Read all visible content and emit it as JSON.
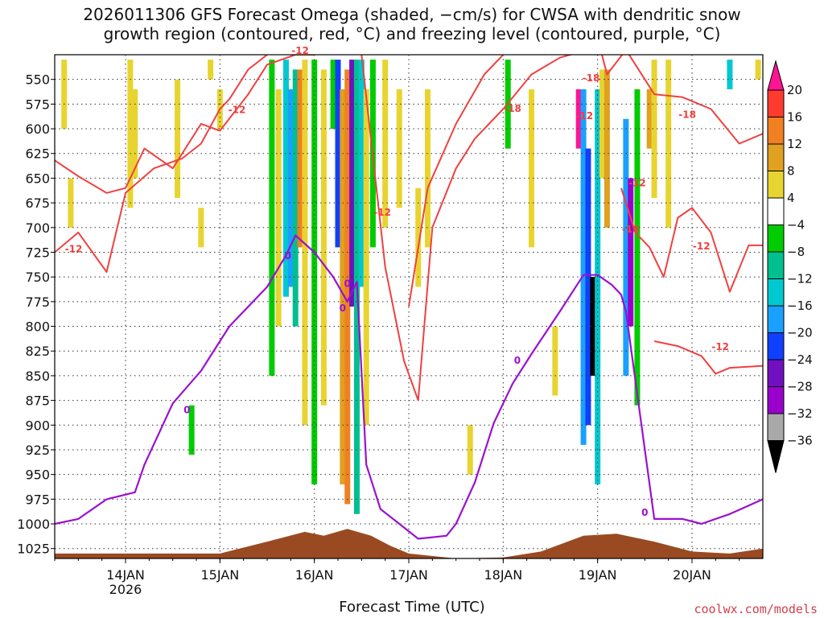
{
  "chart_data": {
    "type": "heatmap",
    "title_line1": "2026011306 GFS Forecast Omega (shaded, −cm/s) for CWSA with dendritic snow",
    "title_line2": "growth region (contoured, red, °C) and freezing level (contoured, purple, °C)",
    "xlabel": "Forecast Time (UTC)",
    "ylabel": "",
    "credit": "coolwx.com/models",
    "x_ticks": [
      "14JAN",
      "15JAN",
      "16JAN",
      "17JAN",
      "18JAN",
      "19JAN",
      "20JAN"
    ],
    "x_year": "2026",
    "x_range_days": [
      13.25,
      20.75
    ],
    "y_ticks": [
      550,
      575,
      600,
      625,
      650,
      675,
      700,
      725,
      750,
      775,
      800,
      825,
      850,
      875,
      900,
      925,
      950,
      975,
      1000,
      1025
    ],
    "y_range_hpa": [
      525,
      1035
    ],
    "colorbar": {
      "labels": [
        "20",
        "16",
        "12",
        "8",
        "4",
        "−4",
        "−8",
        "−12",
        "−16",
        "−20",
        "−24",
        "−28",
        "−32",
        "−36"
      ],
      "colors": [
        "#ff1493",
        "#ff3b30",
        "#f08020",
        "#e0a020",
        "#e8d430",
        "#ffffff",
        "#00cc00",
        "#00c090",
        "#00c8d0",
        "#1aa0ff",
        "#1040ff",
        "#7010c0",
        "#9900cc",
        "#a9a9a9",
        "#000000"
      ]
    },
    "contour_labels_red": [
      "-12",
      "-12",
      "-12",
      "-12",
      "-18",
      "-18",
      "-18",
      "-18",
      "-12",
      "-12",
      "-12",
      "-12"
    ],
    "contour_labels_purple": [
      "0",
      "0",
      "0",
      "0",
      "0",
      "0"
    ],
    "freezing_level_hpa": {
      "x": [
        13.25,
        13.5,
        13.8,
        14.1,
        14.2,
        14.5,
        14.8,
        15.1,
        15.5,
        15.7,
        15.8,
        16.0,
        16.2,
        16.35,
        16.45,
        16.55,
        16.7,
        16.9,
        17.1,
        17.4,
        17.5,
        17.7,
        17.9,
        18.1,
        18.3,
        18.6,
        18.85,
        19.0,
        19.15,
        19.25,
        19.3,
        19.6,
        19.9,
        20.1,
        20.4,
        20.75
      ],
      "y": [
        1000,
        995,
        975,
        968,
        940,
        878,
        845,
        800,
        760,
        728,
        708,
        725,
        750,
        775,
        755,
        940,
        985,
        1000,
        1015,
        1012,
        1000,
        958,
        898,
        858,
        828,
        785,
        748,
        748,
        758,
        768,
        785,
        995,
        995,
        1000,
        990,
        975
      ]
    },
    "dgz_boundaries_hpa": [
      {
        "x": [
          13.25,
          13.5,
          13.8,
          14.0,
          14.2,
          14.5,
          14.8,
          15.0,
          15.3,
          15.5,
          15.8,
          16.0
        ],
        "y": [
          632,
          648,
          665,
          660,
          620,
          640,
          595,
          602,
          565,
          535,
          525,
          525
        ]
      },
      {
        "x": [
          13.25,
          13.5,
          13.8,
          14.0,
          14.3,
          14.6,
          14.8,
          15.0,
          15.1,
          15.3,
          15.5
        ],
        "y": [
          725,
          705,
          745,
          665,
          640,
          630,
          615,
          580,
          570,
          540,
          525
        ]
      },
      {
        "x": [
          16.5,
          16.75,
          16.95,
          17.1,
          17.25,
          17.5,
          17.7,
          18.0,
          18.3,
          18.6,
          18.9,
          19.0
        ],
        "y": [
          525,
          740,
          835,
          875,
          700,
          640,
          610,
          580,
          545,
          528,
          520,
          525
        ]
      },
      {
        "x": [
          17.0,
          17.2,
          17.5,
          17.8,
          18.1,
          18.4,
          18.7,
          18.95,
          19.1,
          19.3,
          19.6,
          19.9,
          20.2,
          20.5,
          20.75
        ],
        "y": [
          780,
          660,
          595,
          545,
          515,
          500,
          495,
          490,
          545,
          520,
          565,
          568,
          580,
          615,
          605
        ]
      },
      {
        "x": [
          19.25,
          19.4,
          19.55,
          19.7,
          19.85,
          20.0,
          20.2,
          20.4,
          20.6,
          20.75
        ],
        "y": [
          660,
          705,
          720,
          750,
          690,
          680,
          705,
          765,
          718,
          718
        ]
      },
      {
        "x": [
          19.6,
          19.85,
          20.1,
          20.25,
          20.4,
          20.75
        ],
        "y": [
          815,
          820,
          830,
          848,
          842,
          840
        ]
      }
    ],
    "omega_cells": [
      {
        "x": 13.35,
        "p0": 530,
        "p1": 600,
        "v": 5
      },
      {
        "x": 13.42,
        "p0": 650,
        "p1": 700,
        "v": 5
      },
      {
        "x": 14.05,
        "p0": 530,
        "p1": 680,
        "v": 5
      },
      {
        "x": 14.1,
        "p0": 560,
        "p1": 650,
        "v": 5
      },
      {
        "x": 14.55,
        "p0": 550,
        "p1": 670,
        "v": 5
      },
      {
        "x": 14.9,
        "p0": 530,
        "p1": 550,
        "v": 5
      },
      {
        "x": 15.0,
        "p0": 560,
        "p1": 600,
        "v": 5
      },
      {
        "x": 14.7,
        "p0": 880,
        "p1": 930,
        "v": -6
      },
      {
        "x": 14.8,
        "p0": 680,
        "p1": 720,
        "v": 5
      },
      {
        "x": 15.55,
        "p0": 530,
        "p1": 850,
        "v": -6
      },
      {
        "x": 15.62,
        "p0": 560,
        "p1": 800,
        "v": 5
      },
      {
        "x": 15.7,
        "p0": 530,
        "p1": 770,
        "v": -13
      },
      {
        "x": 15.75,
        "p0": 560,
        "p1": 760,
        "v": -17
      },
      {
        "x": 15.8,
        "p0": 540,
        "p1": 800,
        "v": -9
      },
      {
        "x": 15.85,
        "p0": 540,
        "p1": 720,
        "v": 13
      },
      {
        "x": 15.9,
        "p0": 530,
        "p1": 900,
        "v": 5
      },
      {
        "x": 16.0,
        "p0": 530,
        "p1": 960,
        "v": -6
      },
      {
        "x": 16.1,
        "p0": 540,
        "p1": 880,
        "v": 5
      },
      {
        "x": 16.2,
        "p0": 530,
        "p1": 600,
        "v": -6
      },
      {
        "x": 16.25,
        "p0": 530,
        "p1": 720,
        "v": -21
      },
      {
        "x": 16.3,
        "p0": 560,
        "p1": 960,
        "v": 9
      },
      {
        "x": 16.35,
        "p0": 540,
        "p1": 980,
        "v": 13
      },
      {
        "x": 16.4,
        "p0": 530,
        "p1": 780,
        "v": -25
      },
      {
        "x": 16.45,
        "p0": 530,
        "p1": 990,
        "v": -9
      },
      {
        "x": 16.5,
        "p0": 530,
        "p1": 760,
        "v": -13
      },
      {
        "x": 16.55,
        "p0": 560,
        "p1": 900,
        "v": 5
      },
      {
        "x": 16.62,
        "p0": 530,
        "p1": 720,
        "v": -6
      },
      {
        "x": 16.75,
        "p0": 530,
        "p1": 700,
        "v": 5
      },
      {
        "x": 16.9,
        "p0": 560,
        "p1": 680,
        "v": 5
      },
      {
        "x": 17.1,
        "p0": 660,
        "p1": 760,
        "v": 5
      },
      {
        "x": 17.2,
        "p0": 560,
        "p1": 720,
        "v": 5
      },
      {
        "x": 17.65,
        "p0": 900,
        "p1": 950,
        "v": 5
      },
      {
        "x": 18.05,
        "p0": 530,
        "p1": 620,
        "v": -6
      },
      {
        "x": 18.3,
        "p0": 560,
        "p1": 720,
        "v": 5
      },
      {
        "x": 18.55,
        "p0": 800,
        "p1": 870,
        "v": 5
      },
      {
        "x": 18.8,
        "p0": 560,
        "p1": 620,
        "v": 21
      },
      {
        "x": 18.85,
        "p0": 560,
        "p1": 920,
        "v": -17
      },
      {
        "x": 18.9,
        "p0": 620,
        "p1": 900,
        "v": -21
      },
      {
        "x": 18.95,
        "p0": 750,
        "p1": 850,
        "v": -40
      },
      {
        "x": 19.0,
        "p0": 560,
        "p1": 960,
        "v": -13
      },
      {
        "x": 19.05,
        "p0": 540,
        "p1": 650,
        "v": 5
      },
      {
        "x": 19.1,
        "p0": 540,
        "p1": 700,
        "v": 9
      },
      {
        "x": 19.3,
        "p0": 590,
        "p1": 850,
        "v": -17
      },
      {
        "x": 19.35,
        "p0": 650,
        "p1": 800,
        "v": -29
      },
      {
        "x": 19.42,
        "p0": 560,
        "p1": 880,
        "v": -6
      },
      {
        "x": 19.55,
        "p0": 560,
        "p1": 620,
        "v": 9
      },
      {
        "x": 19.6,
        "p0": 530,
        "p1": 670,
        "v": 5
      },
      {
        "x": 19.75,
        "p0": 530,
        "p1": 700,
        "v": 5
      },
      {
        "x": 20.4,
        "p0": 530,
        "p1": 560,
        "v": -13
      },
      {
        "x": 20.7,
        "p0": 530,
        "p1": 550,
        "v": 5
      }
    ],
    "terrain_hpa": {
      "x": [
        13.25,
        15.0,
        15.5,
        15.9,
        16.1,
        16.35,
        16.6,
        16.8,
        17.0,
        17.5,
        18.0,
        18.4,
        18.85,
        19.2,
        19.6,
        20.0,
        20.4,
        20.75
      ],
      "y": [
        1030,
        1030,
        1018,
        1008,
        1012,
        1005,
        1012,
        1022,
        1030,
        1035,
        1034,
        1028,
        1012,
        1010,
        1018,
        1028,
        1030,
        1025
      ]
    }
  }
}
